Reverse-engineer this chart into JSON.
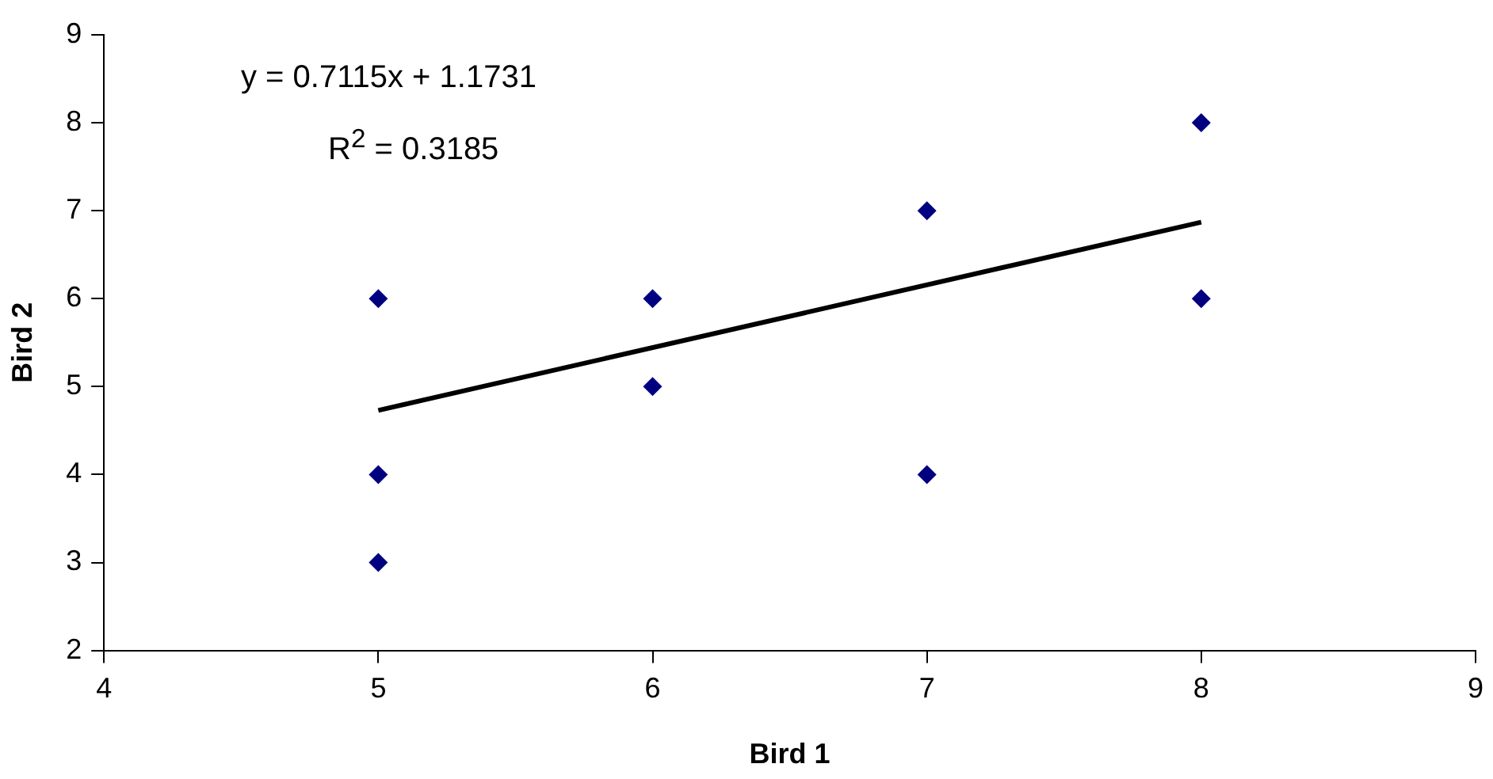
{
  "chart_data": {
    "type": "scatter",
    "xlabel": "Bird 1",
    "ylabel": "Bird 2",
    "x": [
      5,
      5,
      5,
      6,
      6,
      7,
      7,
      8,
      8
    ],
    "series": [
      {
        "color": "#000080",
        "values": [
          6,
          4,
          3,
          6,
          5,
          7,
          4,
          8,
          6
        ]
      },
      {
        "type": "line",
        "color": "#000000",
        "x": [
          5,
          8
        ],
        "values": [
          4.73,
          6.87
        ],
        "marker": "none"
      }
    ],
    "marker": "diamond",
    "xlim": [
      4,
      9
    ],
    "xticks": [
      4,
      5,
      6,
      7,
      8,
      9
    ],
    "ylim": [
      2,
      9
    ],
    "yticks": [
      2,
      3,
      4,
      5,
      6,
      7,
      8,
      9
    ],
    "grid": false,
    "legend": false,
    "annotations": [
      "y = 0.7115x + 1.1731",
      "R$^{2}$ = 0.3185"
    ]
  }
}
